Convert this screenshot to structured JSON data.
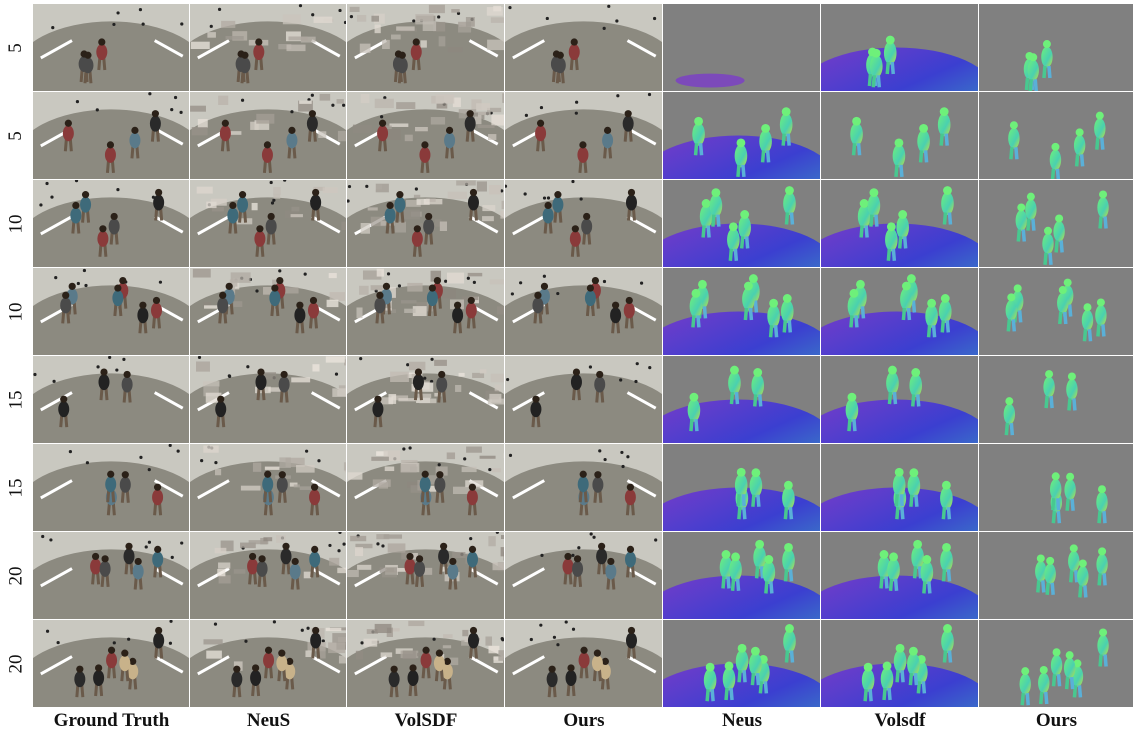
{
  "figure": {
    "row_labels": [
      "5",
      "5",
      "10",
      "10",
      "15",
      "15",
      "20",
      "20"
    ],
    "column_labels": [
      "Ground Truth",
      "NeuS",
      "VolSDF",
      "Ours",
      "Neus",
      "Volsdf",
      "Ours"
    ],
    "column_kinds": [
      "rgb-gt",
      "rgb-neus",
      "rgb-volsdf",
      "rgb-ours",
      "normal-neus",
      "normal-volsdf",
      "normal-ours"
    ],
    "colors": {
      "dome_floor": "#8c8a80",
      "dome_wall": "#c9c8c0",
      "normal_background": "#808080",
      "normal_green": "#6ef07a",
      "normal_blue": "#3b3fd0",
      "normal_purple": "#7a3cc8"
    }
  }
}
